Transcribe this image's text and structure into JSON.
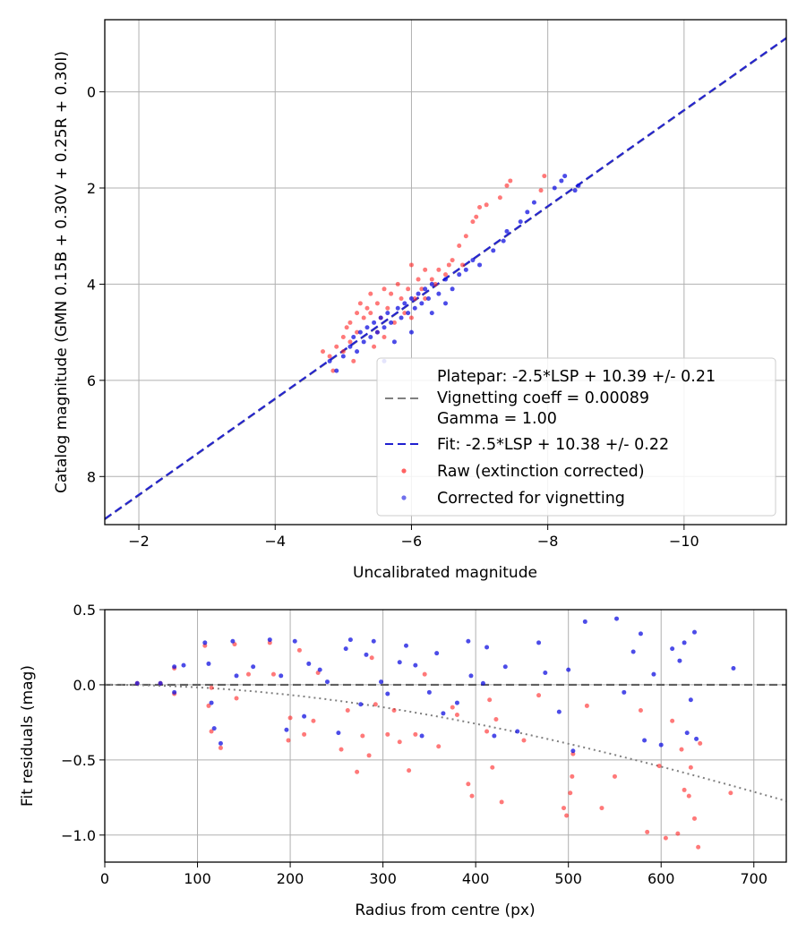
{
  "chart_data": [
    {
      "type": "scatter",
      "title": "",
      "xlabel": "Uncalibrated magnitude",
      "ylabel": "Catalog magnitude (GMN 0.15B + 0.30V + 0.25R + 0.30I)",
      "xlim": [
        -1.5,
        -11.5
      ],
      "ylim": [
        9.0,
        -1.5
      ],
      "x_inverted": true,
      "y_inverted": true,
      "grid": true,
      "xticks": [
        -2,
        -4,
        -6,
        -8,
        -10
      ],
      "xtick_labels": [
        "−2",
        "−4",
        "−6",
        "−8",
        "−10"
      ],
      "yticks": [
        0,
        2,
        4,
        6,
        8
      ],
      "ytick_labels": [
        "0",
        "2",
        "4",
        "6",
        "8"
      ],
      "legend_position": "lower-right",
      "legend": [
        {
          "label": "Platepar: -2.5*LSP + 10.39 +/- 0.21",
          "style": "none"
        },
        {
          "label": "Vignetting coeff = 0.00089",
          "style": "dashed-gray"
        },
        {
          "label": "Gamma = 1.00",
          "style": "none"
        },
        {
          "label": "Fit: -2.5*LSP + 10.38 +/- 0.22",
          "style": "dashed-blue"
        },
        {
          "label": "Raw (extinction corrected)",
          "style": "red-dot"
        },
        {
          "label": "Corrected for vignetting",
          "style": "blue-dot"
        }
      ],
      "lines": [
        {
          "name": "Platepar: -2.5*LSP + 10.39 +/- 0.21",
          "color": "#808080",
          "style": "dashed",
          "slope": 1,
          "intercept": 10.39
        },
        {
          "name": "Fit: -2.5*LSP + 10.38 +/- 0.22",
          "color": "#2020d0",
          "style": "dashed",
          "slope": 1,
          "intercept": 10.38
        }
      ],
      "series": [
        {
          "name": "Raw (extinction corrected)",
          "color": "#ff2020",
          "points": [
            [
              -4.7,
              5.4
            ],
            [
              -4.8,
              5.5
            ],
            [
              -4.85,
              5.8
            ],
            [
              -4.9,
              5.3
            ],
            [
              -5.0,
              5.4
            ],
            [
              -5.0,
              5.1
            ],
            [
              -5.05,
              4.9
            ],
            [
              -5.1,
              4.8
            ],
            [
              -5.15,
              5.6
            ],
            [
              -5.2,
              5.0
            ],
            [
              -5.2,
              4.6
            ],
            [
              -5.25,
              4.4
            ],
            [
              -5.3,
              4.7
            ],
            [
              -5.35,
              4.5
            ],
            [
              -5.4,
              4.6
            ],
            [
              -5.4,
              4.2
            ],
            [
              -5.45,
              5.3
            ],
            [
              -5.5,
              5.0
            ],
            [
              -5.5,
              4.4
            ],
            [
              -5.55,
              4.7
            ],
            [
              -5.6,
              4.1
            ],
            [
              -5.65,
              4.5
            ],
            [
              -5.7,
              4.2
            ],
            [
              -5.75,
              4.8
            ],
            [
              -5.8,
              4.0
            ],
            [
              -5.85,
              4.3
            ],
            [
              -5.9,
              4.6
            ],
            [
              -5.95,
              4.1
            ],
            [
              -6.0,
              3.6
            ],
            [
              -6.05,
              4.3
            ],
            [
              -6.1,
              3.9
            ],
            [
              -6.15,
              4.1
            ],
            [
              -6.2,
              3.7
            ],
            [
              -6.3,
              3.9
            ],
            [
              -6.35,
              4.0
            ],
            [
              -6.4,
              3.7
            ],
            [
              -6.5,
              3.8
            ],
            [
              -6.55,
              3.6
            ],
            [
              -6.6,
              3.5
            ],
            [
              -6.7,
              3.2
            ],
            [
              -6.75,
              3.6
            ],
            [
              -6.8,
              3.0
            ],
            [
              -6.9,
              2.7
            ],
            [
              -6.95,
              2.6
            ],
            [
              -7.0,
              2.4
            ],
            [
              -7.1,
              2.35
            ],
            [
              -7.3,
              2.2
            ],
            [
              -7.4,
              1.95
            ],
            [
              -7.45,
              1.85
            ],
            [
              -7.9,
              2.05
            ],
            [
              -7.95,
              1.75
            ],
            [
              -5.1,
              5.2
            ],
            [
              -5.6,
              5.1
            ],
            [
              -6.0,
              4.7
            ],
            [
              -6.2,
              4.3
            ]
          ]
        },
        {
          "name": "Corrected for vignetting",
          "color": "#1010e0",
          "points": [
            [
              -4.8,
              5.6
            ],
            [
              -4.9,
              5.8
            ],
            [
              -5.0,
              5.5
            ],
            [
              -5.1,
              5.3
            ],
            [
              -5.15,
              5.1
            ],
            [
              -5.2,
              5.4
            ],
            [
              -5.25,
              5.0
            ],
            [
              -5.3,
              5.2
            ],
            [
              -5.35,
              4.9
            ],
            [
              -5.4,
              5.1
            ],
            [
              -5.45,
              4.8
            ],
            [
              -5.5,
              5.0
            ],
            [
              -5.55,
              4.7
            ],
            [
              -5.6,
              4.9
            ],
            [
              -5.65,
              4.6
            ],
            [
              -5.7,
              4.8
            ],
            [
              -5.75,
              5.2
            ],
            [
              -5.8,
              4.5
            ],
            [
              -5.85,
              4.7
            ],
            [
              -5.9,
              4.4
            ],
            [
              -5.95,
              4.6
            ],
            [
              -6.0,
              4.3
            ],
            [
              -6.05,
              4.5
            ],
            [
              -6.1,
              4.2
            ],
            [
              -6.15,
              4.4
            ],
            [
              -6.2,
              4.1
            ],
            [
              -6.25,
              4.3
            ],
            [
              -6.3,
              4.0
            ],
            [
              -6.4,
              4.2
            ],
            [
              -6.5,
              3.9
            ],
            [
              -6.6,
              4.1
            ],
            [
              -6.7,
              3.8
            ],
            [
              -6.8,
              3.7
            ],
            [
              -6.9,
              3.5
            ],
            [
              -7.0,
              3.6
            ],
            [
              -7.2,
              3.3
            ],
            [
              -7.35,
              3.1
            ],
            [
              -7.4,
              2.9
            ],
            [
              -7.6,
              2.7
            ],
            [
              -7.7,
              2.5
            ],
            [
              -7.8,
              2.3
            ],
            [
              -8.1,
              2.0
            ],
            [
              -8.2,
              1.85
            ],
            [
              -8.25,
              1.75
            ],
            [
              -8.4,
              2.05
            ],
            [
              -8.45,
              1.95
            ],
            [
              -5.6,
              5.6
            ],
            [
              -6.0,
              5.0
            ],
            [
              -6.3,
              4.6
            ],
            [
              -6.5,
              4.4
            ]
          ]
        }
      ]
    },
    {
      "type": "scatter",
      "title": "",
      "xlabel": "Radius from centre (px)",
      "ylabel": "Fit residuals (mag)",
      "xlim": [
        0,
        735
      ],
      "ylim": [
        -1.18,
        0.5
      ],
      "grid": true,
      "xticks": [
        0,
        100,
        200,
        300,
        400,
        500,
        600,
        700
      ],
      "xtick_labels": [
        "0",
        "100",
        "200",
        "300",
        "400",
        "500",
        "600",
        "700"
      ],
      "yticks": [
        0.5,
        0.0,
        -0.5,
        -1.0
      ],
      "ytick_labels": [
        "0.5",
        "0.0",
        "−0.5",
        "−1.0"
      ],
      "lines": [
        {
          "name": "zero",
          "color": "#606060",
          "style": "dashed",
          "y": 0.0
        },
        {
          "name": "vignetting model",
          "color": "#808080",
          "style": "dotted",
          "model": "vignetting",
          "coeff": 0.00089
        }
      ],
      "series": [
        {
          "name": "Raw (extinction corrected)",
          "color": "#ff2020",
          "points": [
            [
              35,
              0.01
            ],
            [
              60,
              0.01
            ],
            [
              75,
              -0.06
            ],
            [
              75,
              0.11
            ],
            [
              108,
              0.26
            ],
            [
              112,
              -0.14
            ],
            [
              115,
              -0.31
            ],
            [
              115,
              -0.02
            ],
            [
              125,
              -0.42
            ],
            [
              140,
              0.27
            ],
            [
              142,
              -0.09
            ],
            [
              155,
              0.07
            ],
            [
              178,
              0.28
            ],
            [
              182,
              0.07
            ],
            [
              198,
              -0.37
            ],
            [
              200,
              -0.22
            ],
            [
              210,
              0.23
            ],
            [
              215,
              -0.33
            ],
            [
              225,
              -0.24
            ],
            [
              230,
              0.08
            ],
            [
              255,
              -0.43
            ],
            [
              262,
              -0.17
            ],
            [
              272,
              -0.58
            ],
            [
              278,
              -0.34
            ],
            [
              285,
              -0.47
            ],
            [
              288,
              0.18
            ],
            [
              292,
              -0.13
            ],
            [
              305,
              -0.33
            ],
            [
              312,
              -0.17
            ],
            [
              318,
              -0.38
            ],
            [
              328,
              -0.57
            ],
            [
              335,
              -0.33
            ],
            [
              345,
              0.07
            ],
            [
              360,
              -0.41
            ],
            [
              375,
              -0.15
            ],
            [
              380,
              -0.2
            ],
            [
              392,
              -0.66
            ],
            [
              396,
              -0.74
            ],
            [
              412,
              -0.31
            ],
            [
              415,
              -0.1
            ],
            [
              418,
              -0.55
            ],
            [
              422,
              -0.23
            ],
            [
              428,
              -0.78
            ],
            [
              452,
              -0.37
            ],
            [
              468,
              -0.07
            ],
            [
              495,
              -0.82
            ],
            [
              498,
              -0.87
            ],
            [
              502,
              -0.72
            ],
            [
              504,
              -0.61
            ],
            [
              505,
              -0.46
            ],
            [
              520,
              -0.14
            ],
            [
              536,
              -0.82
            ],
            [
              550,
              -0.61
            ],
            [
              578,
              -0.17
            ],
            [
              585,
              -0.98
            ],
            [
              598,
              -0.54
            ],
            [
              605,
              -1.02
            ],
            [
              612,
              -0.24
            ],
            [
              618,
              -0.99
            ],
            [
              622,
              -0.43
            ],
            [
              625,
              -0.7
            ],
            [
              630,
              -0.74
            ],
            [
              632,
              -0.55
            ],
            [
              636,
              -0.89
            ],
            [
              640,
              -1.08
            ],
            [
              642,
              -0.39
            ],
            [
              675,
              -0.72
            ]
          ]
        },
        {
          "name": "Corrected for vignetting",
          "color": "#1010e0",
          "points": [
            [
              35,
              0.01
            ],
            [
              60,
              0.01
            ],
            [
              75,
              -0.05
            ],
            [
              75,
              0.12
            ],
            [
              85,
              0.13
            ],
            [
              108,
              0.28
            ],
            [
              112,
              0.14
            ],
            [
              115,
              -0.12
            ],
            [
              118,
              -0.29
            ],
            [
              125,
              -0.39
            ],
            [
              138,
              0.29
            ],
            [
              142,
              0.06
            ],
            [
              160,
              0.12
            ],
            [
              178,
              0.3
            ],
            [
              190,
              0.06
            ],
            [
              196,
              -0.3
            ],
            [
              205,
              0.29
            ],
            [
              215,
              -0.21
            ],
            [
              220,
              0.14
            ],
            [
              232,
              0.1
            ],
            [
              240,
              0.02
            ],
            [
              252,
              -0.32
            ],
            [
              260,
              0.24
            ],
            [
              265,
              0.3
            ],
            [
              276,
              -0.13
            ],
            [
              282,
              0.2
            ],
            [
              290,
              0.29
            ],
            [
              298,
              0.02
            ],
            [
              305,
              -0.06
            ],
            [
              318,
              0.15
            ],
            [
              325,
              0.26
            ],
            [
              335,
              0.13
            ],
            [
              342,
              -0.34
            ],
            [
              350,
              -0.05
            ],
            [
              358,
              0.21
            ],
            [
              365,
              -0.19
            ],
            [
              380,
              -0.12
            ],
            [
              392,
              0.29
            ],
            [
              395,
              0.06
            ],
            [
              408,
              0.01
            ],
            [
              412,
              0.25
            ],
            [
              420,
              -0.34
            ],
            [
              432,
              0.12
            ],
            [
              445,
              -0.31
            ],
            [
              468,
              0.28
            ],
            [
              475,
              0.08
            ],
            [
              490,
              -0.18
            ],
            [
              500,
              0.1
            ],
            [
              505,
              -0.44
            ],
            [
              518,
              0.42
            ],
            [
              552,
              0.44
            ],
            [
              560,
              -0.05
            ],
            [
              570,
              0.22
            ],
            [
              578,
              0.34
            ],
            [
              582,
              -0.37
            ],
            [
              592,
              0.07
            ],
            [
              600,
              -0.4
            ],
            [
              612,
              0.24
            ],
            [
              620,
              0.16
            ],
            [
              625,
              0.28
            ],
            [
              628,
              -0.32
            ],
            [
              632,
              -0.1
            ],
            [
              636,
              0.35
            ],
            [
              638,
              -0.36
            ],
            [
              678,
              0.11
            ]
          ]
        }
      ]
    }
  ]
}
